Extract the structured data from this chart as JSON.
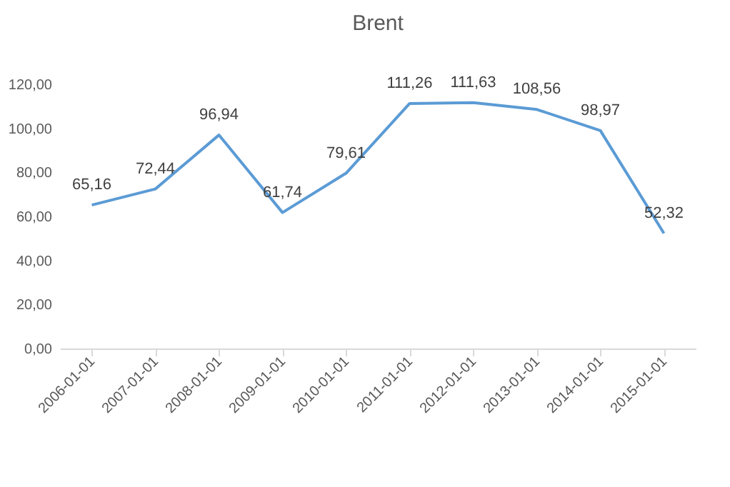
{
  "chart_data": {
    "type": "line",
    "title": "Brent",
    "categories": [
      "2006-01-01",
      "2007-01-01",
      "2008-01-01",
      "2009-01-01",
      "2010-01-01",
      "2011-01-01",
      "2012-01-01",
      "2013-01-01",
      "2014-01-01",
      "2015-01-01"
    ],
    "values": [
      65.16,
      72.44,
      96.94,
      61.74,
      79.61,
      111.26,
      111.63,
      108.56,
      98.97,
      52.32
    ],
    "value_labels": [
      "65,16",
      "72,44",
      "96,94",
      "61,74",
      "79,61",
      "111,26",
      "111,63",
      "108,56",
      "98,97",
      "52,32"
    ],
    "color": "#5b9bd5",
    "ylim": [
      0,
      120
    ],
    "yticks": [
      {
        "value": 0,
        "label": "0,00"
      },
      {
        "value": 20,
        "label": "20,00"
      },
      {
        "value": 40,
        "label": "40,00"
      },
      {
        "value": 60,
        "label": "60,00"
      },
      {
        "value": 80,
        "label": "80,00"
      },
      {
        "value": 100,
        "label": "100,00"
      },
      {
        "value": 120,
        "label": "120,00"
      }
    ],
    "marker": "none"
  }
}
